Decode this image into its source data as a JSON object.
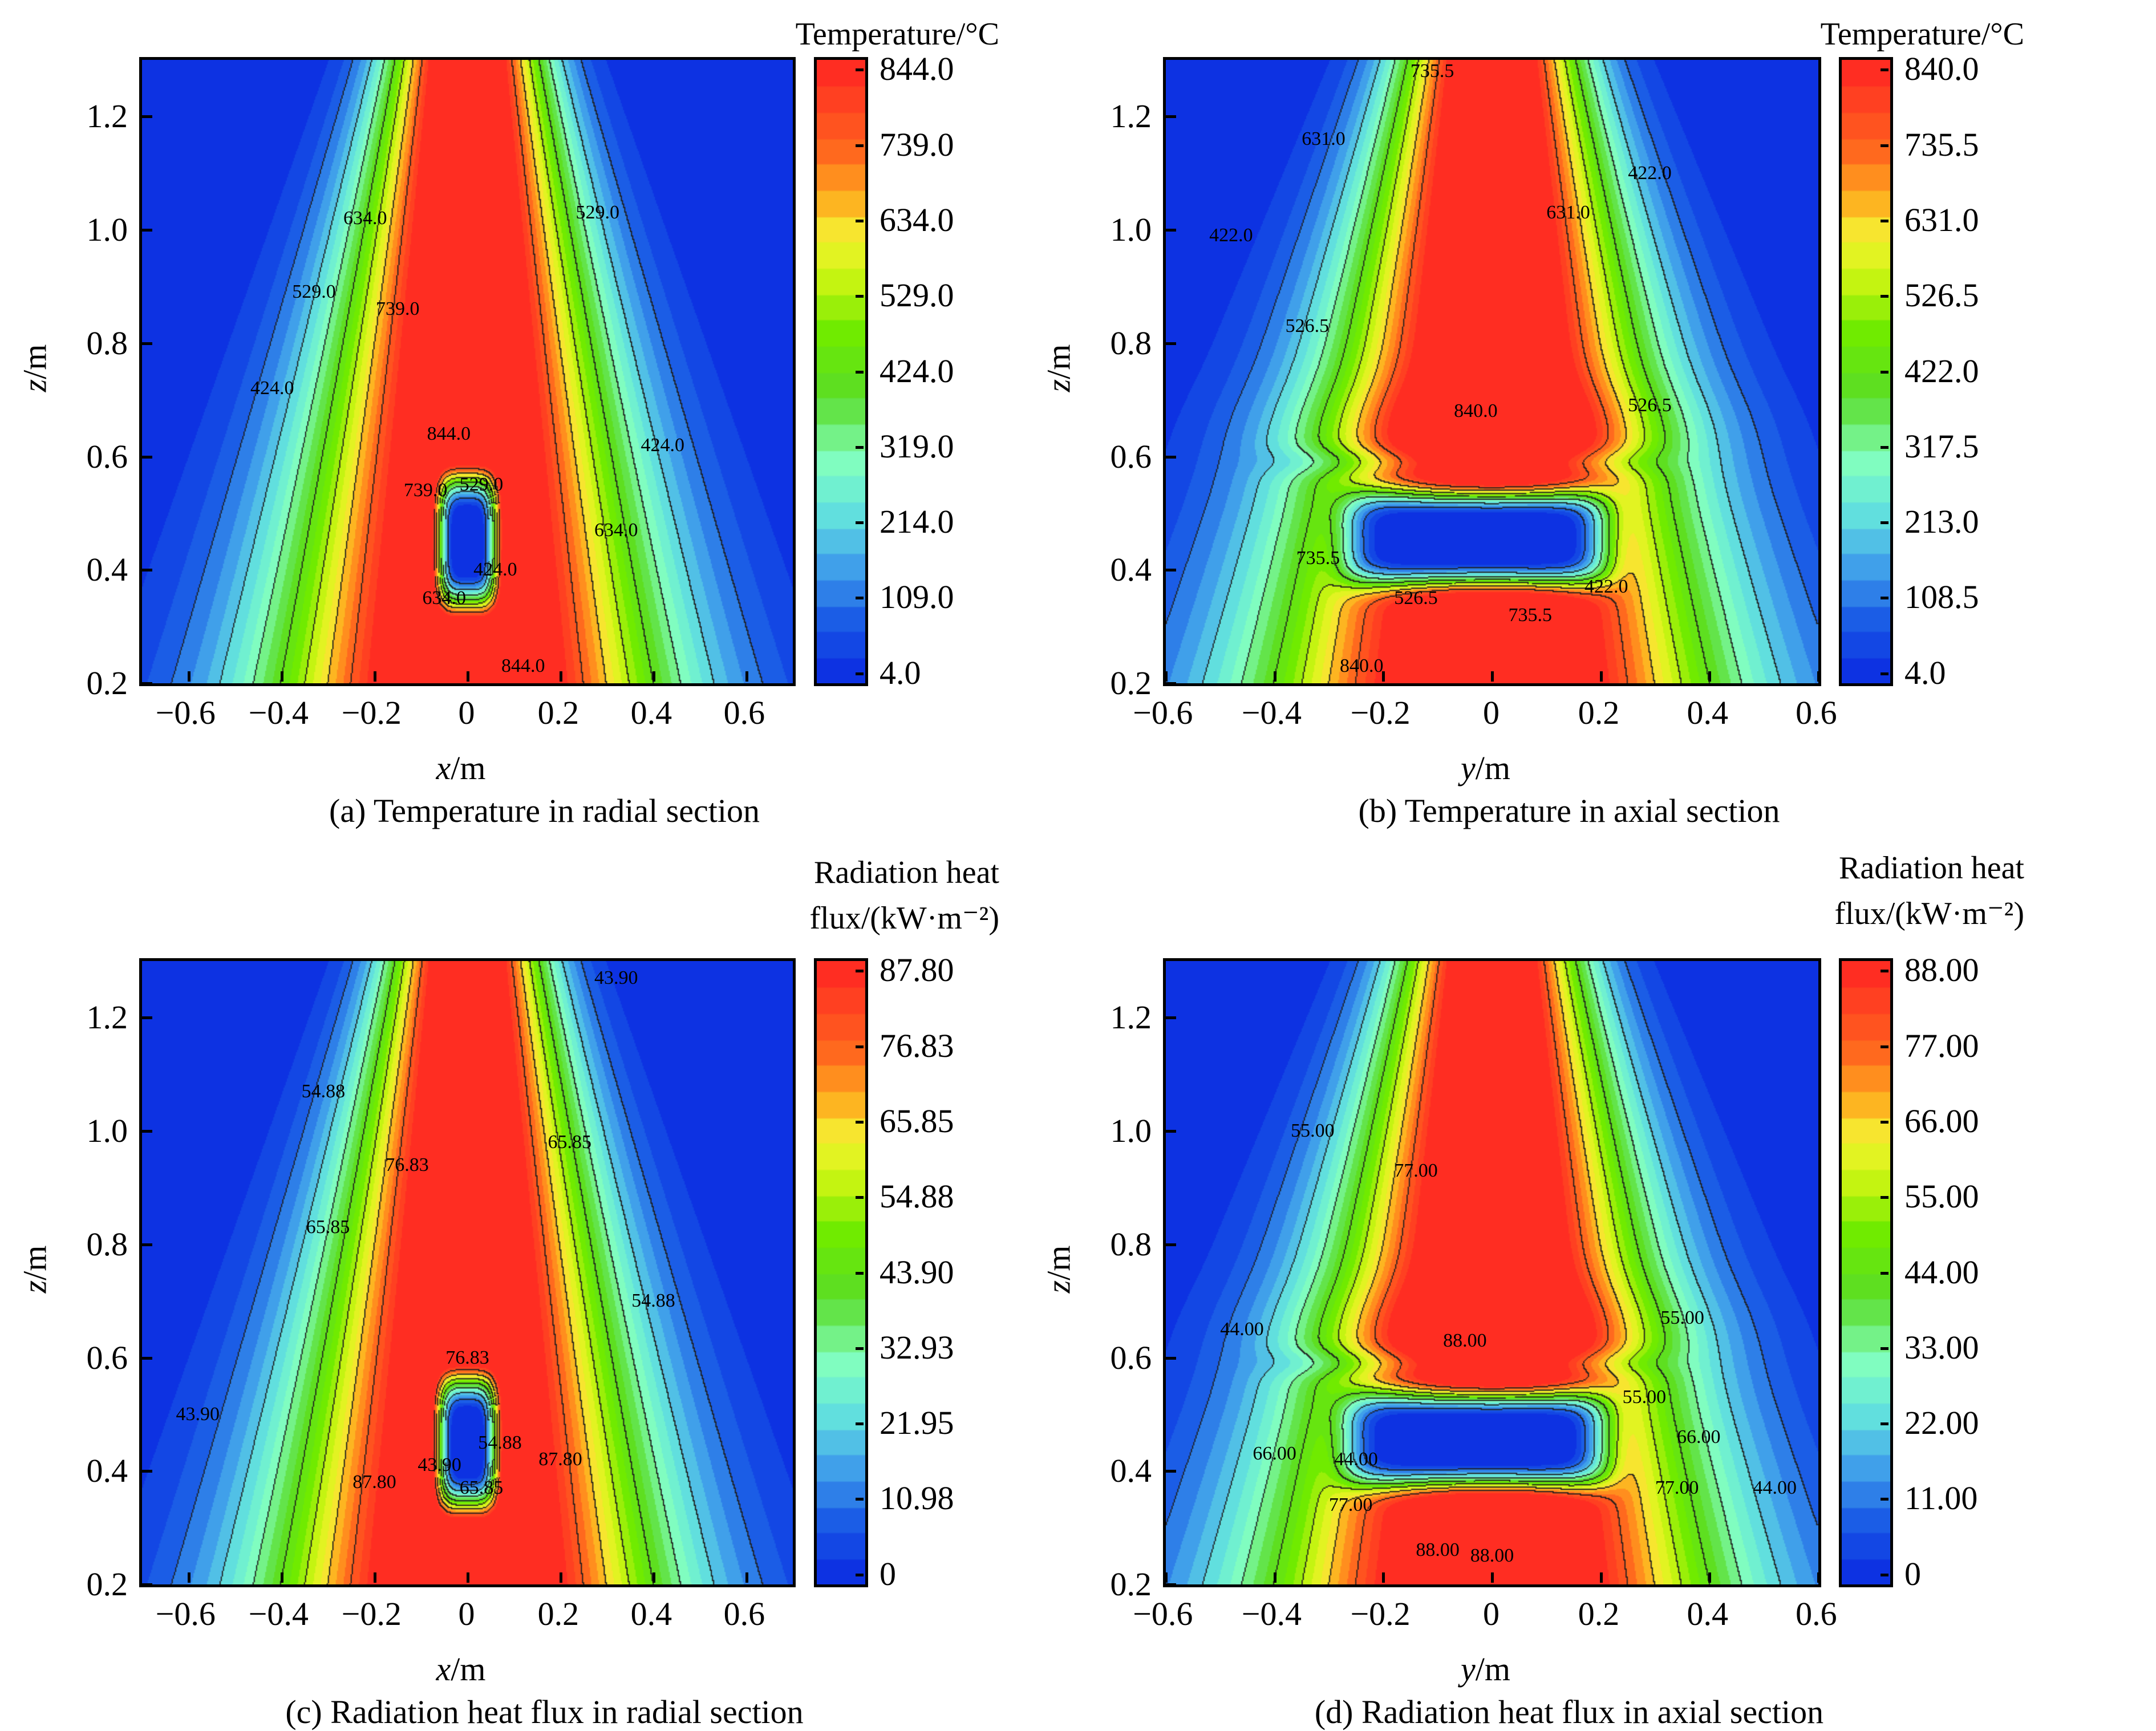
{
  "chart_data": [
    {
      "id": "a",
      "type": "heatmap",
      "subtype": "filled-contour",
      "title": "(a) Temperature in radial section",
      "xlabel_var": "x",
      "xlabel_unit": "/m",
      "ylabel_var": "z",
      "ylabel_unit": "/m",
      "xlim": [
        -0.7,
        0.7
      ],
      "ylim": [
        0.2,
        1.3
      ],
      "xticks": [
        "−0.6",
        "−0.4",
        "−0.2",
        "0",
        "0.2",
        "0.4",
        "0.6"
      ],
      "xtick_values": [
        -0.6,
        -0.4,
        -0.2,
        0,
        0.2,
        0.4,
        0.6
      ],
      "yticks": [
        "0.2",
        "0.4",
        "0.6",
        "0.8",
        "1.0",
        "1.2"
      ],
      "ytick_values": [
        0.2,
        0.4,
        0.6,
        0.8,
        1.0,
        1.2
      ],
      "colorbar_title": [
        "Temperature/°C"
      ],
      "colorbar_ticks": [
        "844.0",
        "739.0",
        "634.0",
        "529.0",
        "424.0",
        "319.0",
        "214.0",
        "109.0",
        "4.0"
      ],
      "colorbar_values": [
        844,
        739,
        634,
        529,
        424,
        319,
        214,
        109,
        4
      ],
      "vmin": 4,
      "vmax": 844,
      "section": "radial",
      "contour_labels": [
        {
          "text": "634.0",
          "x": -0.22,
          "z": 1.02
        },
        {
          "text": "529.0",
          "x": 0.28,
          "z": 1.03
        },
        {
          "text": "529.0",
          "x": -0.33,
          "z": 0.89
        },
        {
          "text": "739.0",
          "x": -0.15,
          "z": 0.86
        },
        {
          "text": "424.0",
          "x": -0.42,
          "z": 0.72
        },
        {
          "text": "844.0",
          "x": -0.04,
          "z": 0.64
        },
        {
          "text": "424.0",
          "x": 0.42,
          "z": 0.62
        },
        {
          "text": "739.0",
          "x": -0.09,
          "z": 0.54
        },
        {
          "text": "529.0",
          "x": 0.03,
          "z": 0.55
        },
        {
          "text": "634.0",
          "x": 0.32,
          "z": 0.47
        },
        {
          "text": "424.0",
          "x": 0.06,
          "z": 0.4
        },
        {
          "text": "634.0",
          "x": -0.05,
          "z": 0.35
        },
        {
          "text": "844.0",
          "x": 0.12,
          "z": 0.23
        }
      ]
    },
    {
      "id": "b",
      "type": "heatmap",
      "subtype": "filled-contour",
      "title": "(b) Temperature in axial section",
      "xlabel_var": "y",
      "xlabel_unit": "/m",
      "ylabel_var": "z",
      "ylabel_unit": "/m",
      "xlim": [
        -0.6,
        0.6
      ],
      "ylim": [
        0.2,
        1.3
      ],
      "xticks": [
        "−0.6",
        "−0.4",
        "−0.2",
        "0",
        "0.2",
        "0.4",
        "0.6"
      ],
      "xtick_values": [
        -0.6,
        -0.4,
        -0.2,
        0,
        0.2,
        0.4,
        0.6
      ],
      "yticks": [
        "0.2",
        "0.4",
        "0.6",
        "0.8",
        "1.0",
        "1.2"
      ],
      "ytick_values": [
        0.2,
        0.4,
        0.6,
        0.8,
        1.0,
        1.2
      ],
      "colorbar_title": [
        "Temperature/°C"
      ],
      "colorbar_ticks": [
        "840.0",
        "735.5",
        "631.0",
        "526.5",
        "422.0",
        "317.5",
        "213.0",
        "108.5",
        "4.0"
      ],
      "colorbar_values": [
        840,
        735.5,
        631,
        526.5,
        422,
        317.5,
        213,
        108.5,
        4
      ],
      "vmin": 4,
      "vmax": 840,
      "section": "axial",
      "contour_labels": [
        {
          "text": "735.5",
          "x": -0.11,
          "z": 1.28
        },
        {
          "text": "631.0",
          "x": -0.31,
          "z": 1.16
        },
        {
          "text": "422.0",
          "x": 0.29,
          "z": 1.1
        },
        {
          "text": "631.0",
          "x": 0.14,
          "z": 1.03
        },
        {
          "text": "422.0",
          "x": -0.48,
          "z": 0.99
        },
        {
          "text": "526.5",
          "x": -0.34,
          "z": 0.83
        },
        {
          "text": "840.0",
          "x": -0.03,
          "z": 0.68
        },
        {
          "text": "526.5",
          "x": 0.29,
          "z": 0.69
        },
        {
          "text": "735.5",
          "x": -0.32,
          "z": 0.42
        },
        {
          "text": "526.5",
          "x": -0.14,
          "z": 0.35
        },
        {
          "text": "422.0",
          "x": 0.21,
          "z": 0.37
        },
        {
          "text": "735.5",
          "x": 0.07,
          "z": 0.32
        },
        {
          "text": "840.0",
          "x": -0.24,
          "z": 0.23
        }
      ]
    },
    {
      "id": "c",
      "type": "heatmap",
      "subtype": "filled-contour",
      "title": "(c) Radiation heat flux in radial section",
      "xlabel_var": "x",
      "xlabel_unit": "/m",
      "ylabel_var": "z",
      "ylabel_unit": "/m",
      "xlim": [
        -0.7,
        0.7
      ],
      "ylim": [
        0.2,
        1.3
      ],
      "xticks": [
        "−0.6",
        "−0.4",
        "−0.2",
        "0",
        "0.2",
        "0.4",
        "0.6"
      ],
      "xtick_values": [
        -0.6,
        -0.4,
        -0.2,
        0,
        0.2,
        0.4,
        0.6
      ],
      "yticks": [
        "0.2",
        "0.4",
        "0.6",
        "0.8",
        "1.0",
        "1.2"
      ],
      "ytick_values": [
        0.2,
        0.4,
        0.6,
        0.8,
        1.0,
        1.2
      ],
      "colorbar_title": [
        "Radiation heat",
        "flux/(kW·m⁻²)"
      ],
      "colorbar_ticks": [
        "87.80",
        "76.83",
        "65.85",
        "54.88",
        "43.90",
        "32.93",
        "21.95",
        "10.98",
        "0"
      ],
      "colorbar_values": [
        87.8,
        76.83,
        65.85,
        54.88,
        43.9,
        32.93,
        21.95,
        10.98,
        0
      ],
      "vmin": 0,
      "vmax": 87.8,
      "section": "radial",
      "contour_labels": [
        {
          "text": "43.90",
          "x": 0.32,
          "z": 1.27
        },
        {
          "text": "54.88",
          "x": -0.31,
          "z": 1.07
        },
        {
          "text": "65.85",
          "x": 0.22,
          "z": 0.98
        },
        {
          "text": "76.83",
          "x": -0.13,
          "z": 0.94
        },
        {
          "text": "65.85",
          "x": -0.3,
          "z": 0.83
        },
        {
          "text": "54.88",
          "x": 0.4,
          "z": 0.7
        },
        {
          "text": "76.83",
          "x": 0.0,
          "z": 0.6
        },
        {
          "text": "43.90",
          "x": -0.58,
          "z": 0.5
        },
        {
          "text": "54.88",
          "x": 0.07,
          "z": 0.45
        },
        {
          "text": "87.80",
          "x": 0.2,
          "z": 0.42
        },
        {
          "text": "43.90",
          "x": -0.06,
          "z": 0.41
        },
        {
          "text": "87.80",
          "x": -0.2,
          "z": 0.38
        },
        {
          "text": "65.85",
          "x": 0.03,
          "z": 0.37
        }
      ]
    },
    {
      "id": "d",
      "type": "heatmap",
      "subtype": "filled-contour",
      "title": "(d) Radiation heat flux in axial section",
      "xlabel_var": "y",
      "xlabel_unit": "/m",
      "ylabel_var": "z",
      "ylabel_unit": "/m",
      "xlim": [
        -0.6,
        0.6
      ],
      "ylim": [
        0.2,
        1.3
      ],
      "xticks": [
        "−0.6",
        "−0.4",
        "−0.2",
        "0",
        "0.2",
        "0.4",
        "0.6"
      ],
      "xtick_values": [
        -0.6,
        -0.4,
        -0.2,
        0,
        0.2,
        0.4,
        0.6
      ],
      "yticks": [
        "0.2",
        "0.4",
        "0.6",
        "0.8",
        "1.0",
        "1.2"
      ],
      "ytick_values": [
        0.2,
        0.4,
        0.6,
        0.8,
        1.0,
        1.2
      ],
      "colorbar_title": [
        "Radiation heat",
        "flux/(kW·m⁻²)"
      ],
      "colorbar_ticks": [
        "88.00",
        "77.00",
        "66.00",
        "55.00",
        "44.00",
        "33.00",
        "22.00",
        "11.00",
        "0"
      ],
      "colorbar_values": [
        88,
        77,
        66,
        55,
        44,
        33,
        22,
        11,
        0
      ],
      "vmin": 0,
      "vmax": 88,
      "section": "axial",
      "contour_labels": [
        {
          "text": "55.00",
          "x": -0.33,
          "z": 1.0
        },
        {
          "text": "77.00",
          "x": -0.14,
          "z": 0.93
        },
        {
          "text": "44.00",
          "x": -0.46,
          "z": 0.65
        },
        {
          "text": "55.00",
          "x": 0.35,
          "z": 0.67
        },
        {
          "text": "88.00",
          "x": -0.05,
          "z": 0.63
        },
        {
          "text": "55.00",
          "x": 0.28,
          "z": 0.53
        },
        {
          "text": "66.00",
          "x": 0.38,
          "z": 0.46
        },
        {
          "text": "66.00",
          "x": -0.4,
          "z": 0.43
        },
        {
          "text": "44.00",
          "x": -0.25,
          "z": 0.42
        },
        {
          "text": "77.00",
          "x": 0.34,
          "z": 0.37
        },
        {
          "text": "44.00",
          "x": 0.52,
          "z": 0.37
        },
        {
          "text": "77.00",
          "x": -0.26,
          "z": 0.34
        },
        {
          "text": "88.00",
          "x": -0.1,
          "z": 0.26
        },
        {
          "text": "88.00",
          "x": 0.0,
          "z": 0.25
        }
      ]
    }
  ]
}
